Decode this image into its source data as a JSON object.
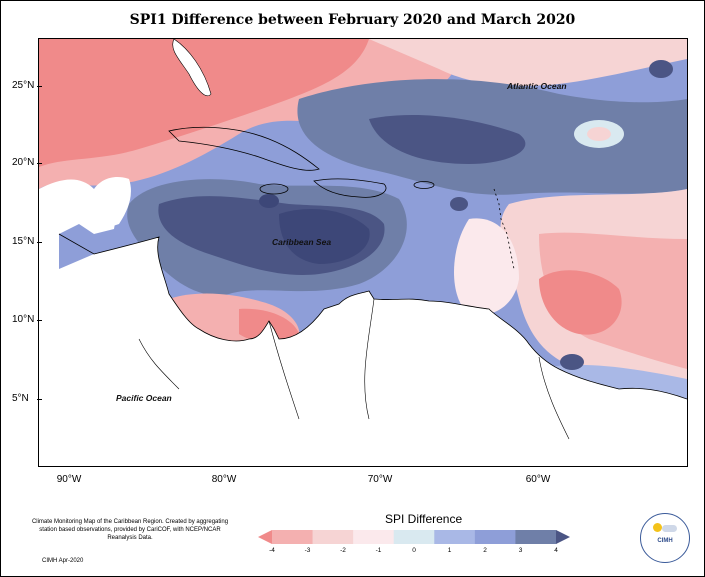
{
  "title": "SPI1 Difference between February 2020 and March 2020",
  "axes": {
    "lat_labels": [
      "25°N",
      "20°N",
      "15°N",
      "10°N",
      "5°N"
    ],
    "lon_labels": [
      "90°W",
      "80°W",
      "70°W",
      "60°W"
    ]
  },
  "map_labels": {
    "atlantic": "Atlantic Ocean",
    "caribbean": "Caribbean Sea",
    "pacific": "Pacific Ocean"
  },
  "legend": {
    "title": "SPI Difference",
    "ticks": [
      "-4",
      "-3",
      "-2",
      "-1",
      "0",
      "1",
      "2",
      "3",
      "4"
    ],
    "colors": [
      "#f08a8a",
      "#f4b0b0",
      "#f6d4d4",
      "#fbe9ec",
      "#d9e9f0",
      "#a9b8e6",
      "#8e9ed8",
      "#6f7fa8",
      "#4b5584"
    ]
  },
  "credits": {
    "text": "Climate Monitoring Map of the Caribbean Region. Created by aggregating station based observations, provided by CariCOF, with NCEP/NCAR Reanalysis Data.",
    "source": "CIMH Apr-2020",
    "logo_text": "CIMH"
  }
}
